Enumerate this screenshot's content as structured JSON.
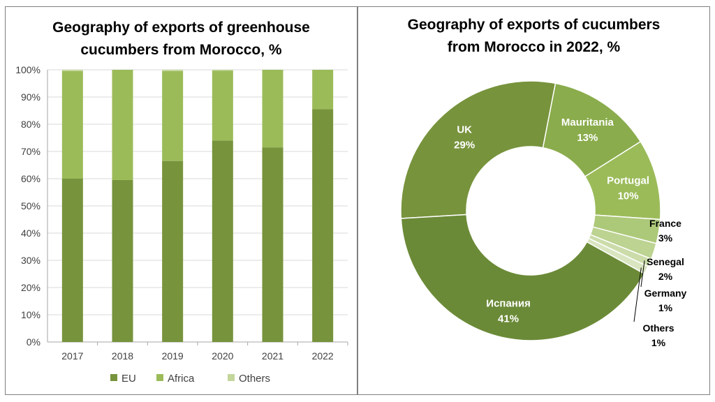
{
  "charts": [
    {
      "title_line1": "Geography of exports of greenhouse",
      "title_line2": "cucumbers from Morocco, %"
    },
    {
      "title_line1": "Geography of exports of cucumbers",
      "title_line2": "from Morocco in 2022, %"
    }
  ],
  "chart_data": [
    {
      "type": "bar",
      "stacked": true,
      "title": "Geography of exports of greenhouse cucumbers from Morocco, %",
      "categories": [
        "2017",
        "2018",
        "2019",
        "2020",
        "2021",
        "2022"
      ],
      "series": [
        {
          "name": "EU",
          "values": [
            60,
            59.5,
            66.5,
            74,
            71.5,
            85.5
          ],
          "color": "#77933c"
        },
        {
          "name": "Africa",
          "values": [
            39.5,
            40.5,
            33,
            25.7,
            28.5,
            14.5
          ],
          "color": "#9bbb59"
        },
        {
          "name": "Others",
          "values": [
            0.5,
            0,
            0.5,
            0.3,
            0,
            0
          ],
          "color": "#c3d69b"
        }
      ],
      "ylim": [
        0,
        100
      ],
      "yticks": [
        "0%",
        "10%",
        "20%",
        "30%",
        "40%",
        "50%",
        "60%",
        "70%",
        "80%",
        "90%",
        "100%"
      ],
      "grid": true,
      "legend_position": "bottom"
    },
    {
      "type": "pie",
      "donut": true,
      "title": "Geography of exports of cucumbers from Morocco in 2022, %",
      "slices": [
        {
          "label": "UK",
          "value": 29,
          "pct": "29%",
          "color": "#77933c"
        },
        {
          "label": "Mauritania",
          "value": 13,
          "pct": "13%",
          "color": "#8aac4c"
        },
        {
          "label": "Portugal",
          "value": 10,
          "pct": "10%",
          "color": "#9bbb59"
        },
        {
          "label": "France",
          "value": 3,
          "pct": "3%",
          "color": "#acc879"
        },
        {
          "label": "Senegal",
          "value": 2,
          "pct": "2%",
          "color": "#bcd391"
        },
        {
          "label": "Germany",
          "value": 1,
          "pct": "1%",
          "color": "#cbdcaa"
        },
        {
          "label": "Others",
          "value": 1,
          "pct": "1%",
          "color": "#d8e5c0"
        },
        {
          "label": "Испания",
          "value": 41,
          "pct": "41%",
          "color": "#6b8a37"
        }
      ]
    }
  ]
}
